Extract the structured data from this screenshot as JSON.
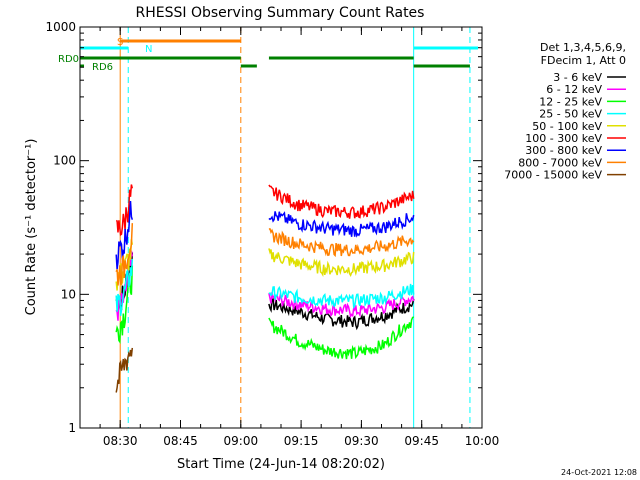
{
  "chart_data": {
    "type": "line",
    "title": "RHESSI Observing Summary Count Rates",
    "xlabel": "Start Time (24-Jun-14 08:20:02)",
    "ylabel": "Count Rate (s⁻¹ detector⁻¹)",
    "yscale": "log",
    "ylim": [
      1,
      1000
    ],
    "xlim": [
      "08:20",
      "10:00"
    ],
    "xtick_labels": [
      "08:30",
      "08:45",
      "09:00",
      "09:15",
      "09:30",
      "09:45",
      "10:00"
    ],
    "ytick_labels": [
      "1",
      "10",
      "100",
      "1000"
    ],
    "legend_header": [
      "Det 1,3,4,5,6,9,",
      "FDecim 1, Att 0"
    ],
    "footer_date": "24-Oct-2021 12:08",
    "series": [
      {
        "name": "3 - 6 keV",
        "color": "#000000",
        "seg1": [
          9,
          10,
          20
        ],
        "seg2": [
          8.5,
          7.5,
          6.5,
          6.2,
          7,
          8.5
        ]
      },
      {
        "name": "6 - 12 keV",
        "color": "#ff00ff",
        "seg1": [
          7.5,
          9,
          18
        ],
        "seg2": [
          9.5,
          8.5,
          7.8,
          7.5,
          8,
          9.5
        ]
      },
      {
        "name": "12 - 25 keV",
        "color": "#00ff00",
        "seg1": [
          5,
          7,
          14
        ],
        "seg2": [
          6,
          4.5,
          3.8,
          3.6,
          4.2,
          6.5
        ]
      },
      {
        "name": "25 - 50 keV",
        "color": "#00ffff",
        "seg1": [
          8,
          10,
          16
        ],
        "seg2": [
          10.5,
          9.5,
          9,
          9,
          9.5,
          11
        ]
      },
      {
        "name": "50 - 100 keV",
        "color": "#e0e000",
        "seg1": [
          13,
          15,
          22
        ],
        "seg2": [
          20,
          17,
          15.5,
          15.5,
          16.5,
          19
        ]
      },
      {
        "name": "100 - 300 keV",
        "color": "#ff0000",
        "seg1": [
          30,
          34,
          60
        ],
        "seg2": [
          60,
          47,
          42,
          41,
          45,
          55
        ]
      },
      {
        "name": "300 - 800 keV",
        "color": "#0000ff",
        "seg1": [
          20,
          24,
          45
        ],
        "seg2": [
          40,
          34,
          31,
          30,
          32,
          38
        ]
      },
      {
        "name": "800 - 7000 keV",
        "color": "#ff8000",
        "seg1": [
          14,
          16,
          28
        ],
        "seg2": [
          28,
          24,
          22,
          21.5,
          23,
          26
        ]
      },
      {
        "name": "7000 - 15000 keV",
        "color": "#804000",
        "seg1": [
          2,
          3,
          4
        ],
        "seg2": []
      }
    ],
    "series_time_ranges": {
      "seg1": [
        "08:29",
        "08:33"
      ],
      "seg2": [
        "09:07",
        "09:43"
      ]
    },
    "flags": [
      {
        "label": "S",
        "color": "#ff8000",
        "intervals": [
          [
            "08:30",
            "09:00"
          ]
        ]
      },
      {
        "label": "N",
        "color": "#00ffff",
        "intervals": [
          [
            "08:20",
            "08:32"
          ],
          [
            "09:43",
            "09:59"
          ]
        ]
      },
      {
        "label": "RD0",
        "color": "#008000",
        "intervals": [
          [
            "08:20",
            "09:00"
          ],
          [
            "09:07",
            "09:43"
          ]
        ]
      },
      {
        "label": "RD6",
        "color": "#008000",
        "intervals": [
          [
            "08:20",
            "08:21"
          ],
          [
            "09:00",
            "09:04"
          ],
          [
            "09:43",
            "09:57"
          ]
        ]
      }
    ],
    "vlines": [
      {
        "time": "08:20",
        "color": "#00ffff",
        "style": "solid"
      },
      {
        "time": "08:30",
        "color": "#ff8000",
        "style": "solid"
      },
      {
        "time": "08:32",
        "color": "#00ffff",
        "style": "dashed"
      },
      {
        "time": "09:00",
        "color": "#ff8000",
        "style": "dashed"
      },
      {
        "time": "09:43",
        "color": "#00ffff",
        "style": "solid"
      },
      {
        "time": "09:57",
        "color": "#00ffff",
        "style": "dashed"
      }
    ]
  }
}
